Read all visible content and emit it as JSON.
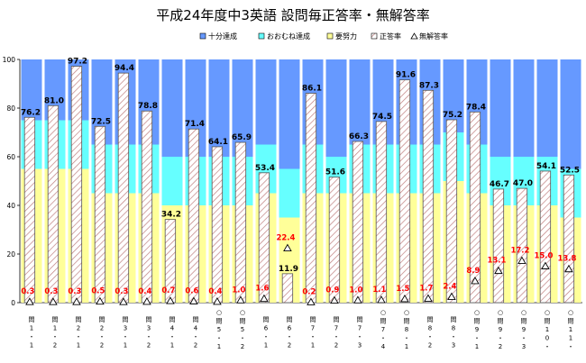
{
  "chart_data": {
    "type": "bar",
    "title": "平成24年度中3英語 設問毎正答率・無解答率",
    "legend": [
      {
        "name": "十分達成",
        "color": "#6699ff",
        "marker": "rect"
      },
      {
        "name": "おおむね達成",
        "color": "#66ffff",
        "marker": "rect"
      },
      {
        "name": "要努力",
        "color": "#ffff99",
        "marker": "rect"
      },
      {
        "name": "正答率",
        "color": "#ffffff",
        "marker": "hatched"
      },
      {
        "name": "無解答率",
        "color": "#ffffff",
        "marker": "triangle"
      }
    ],
    "ylim": [
      0,
      100
    ],
    "yticks": [
      0,
      20,
      40,
      60,
      80,
      100
    ],
    "grid": false,
    "categories": [
      [
        "問",
        "1",
        "・",
        "1"
      ],
      [
        "問",
        "1",
        "・",
        "2"
      ],
      [
        "問",
        "2",
        "・",
        "1"
      ],
      [
        "問",
        "2",
        "・",
        "2"
      ],
      [
        "問",
        "3",
        "・",
        "1"
      ],
      [
        "問",
        "3",
        "・",
        "2"
      ],
      [
        "問",
        "4",
        "・",
        "1"
      ],
      [
        "問",
        "4",
        "・",
        "2"
      ],
      [
        "○",
        "問",
        "5",
        "・",
        "1"
      ],
      [
        "○",
        "問",
        "5",
        "・",
        "2"
      ],
      [
        "問",
        "6",
        "・",
        "1"
      ],
      [
        "問",
        "6",
        "・",
        "2"
      ],
      [
        "問",
        "7",
        "・",
        "1"
      ],
      [
        "問",
        "7",
        "・",
        "2"
      ],
      [
        "問",
        "7",
        "・",
        "3"
      ],
      [
        "○",
        "問",
        "7",
        "・",
        "4"
      ],
      [
        "○",
        "問",
        "8",
        "・",
        "1"
      ],
      [
        "問",
        "8",
        "・",
        "2"
      ],
      [
        "問",
        "8",
        "・",
        "3"
      ],
      [
        "○",
        "問",
        "9",
        "・",
        "1"
      ],
      [
        "○",
        "問",
        "9",
        "・",
        "2"
      ],
      [
        "○",
        "問",
        "9",
        "・",
        "3"
      ],
      [
        "○",
        "問",
        "1",
        "0",
        "・"
      ],
      [
        "○",
        "問",
        "1",
        "1",
        "・"
      ]
    ],
    "series": [
      {
        "name": "要努力",
        "color": "#ffff99",
        "values": [
          55,
          55,
          55,
          45,
          45,
          45,
          40,
          40,
          40,
          40,
          45,
          35,
          45,
          45,
          45,
          45,
          45,
          45,
          50,
          45,
          40,
          40,
          40,
          35
        ]
      },
      {
        "name": "おおむね達成",
        "color": "#66ffff",
        "values": [
          20,
          20,
          20,
          20,
          20,
          20,
          20,
          20,
          20,
          20,
          20,
          20,
          20,
          15,
          20,
          20,
          20,
          20,
          20,
          20,
          20,
          20,
          20,
          20
        ]
      },
      {
        "name": "十分達成",
        "color": "#6699ff",
        "values": [
          25,
          25,
          25,
          35,
          35,
          35,
          40,
          40,
          40,
          40,
          35,
          45,
          35,
          40,
          35,
          35,
          35,
          35,
          30,
          35,
          40,
          40,
          40,
          45
        ]
      },
      {
        "name": "正答率",
        "values": [
          76.2,
          81.0,
          97.2,
          72.5,
          94.4,
          78.8,
          34.2,
          71.4,
          64.1,
          65.9,
          53.4,
          11.9,
          86.1,
          51.6,
          66.3,
          74.5,
          91.6,
          87.3,
          75.2,
          78.4,
          46.7,
          47.0,
          54.1,
          52.5
        ]
      },
      {
        "name": "無解答率",
        "values": [
          0.3,
          0.3,
          0.3,
          0.5,
          0.3,
          0.4,
          0.7,
          0.6,
          0.4,
          1.0,
          1.6,
          22.4,
          0.2,
          0.9,
          1.0,
          1.1,
          1.5,
          1.7,
          2.4,
          8.9,
          13.1,
          17.2,
          15.0,
          13.8
        ]
      }
    ],
    "value_label_color": "#000000",
    "nonanswer_label_color": "#ff0000"
  }
}
